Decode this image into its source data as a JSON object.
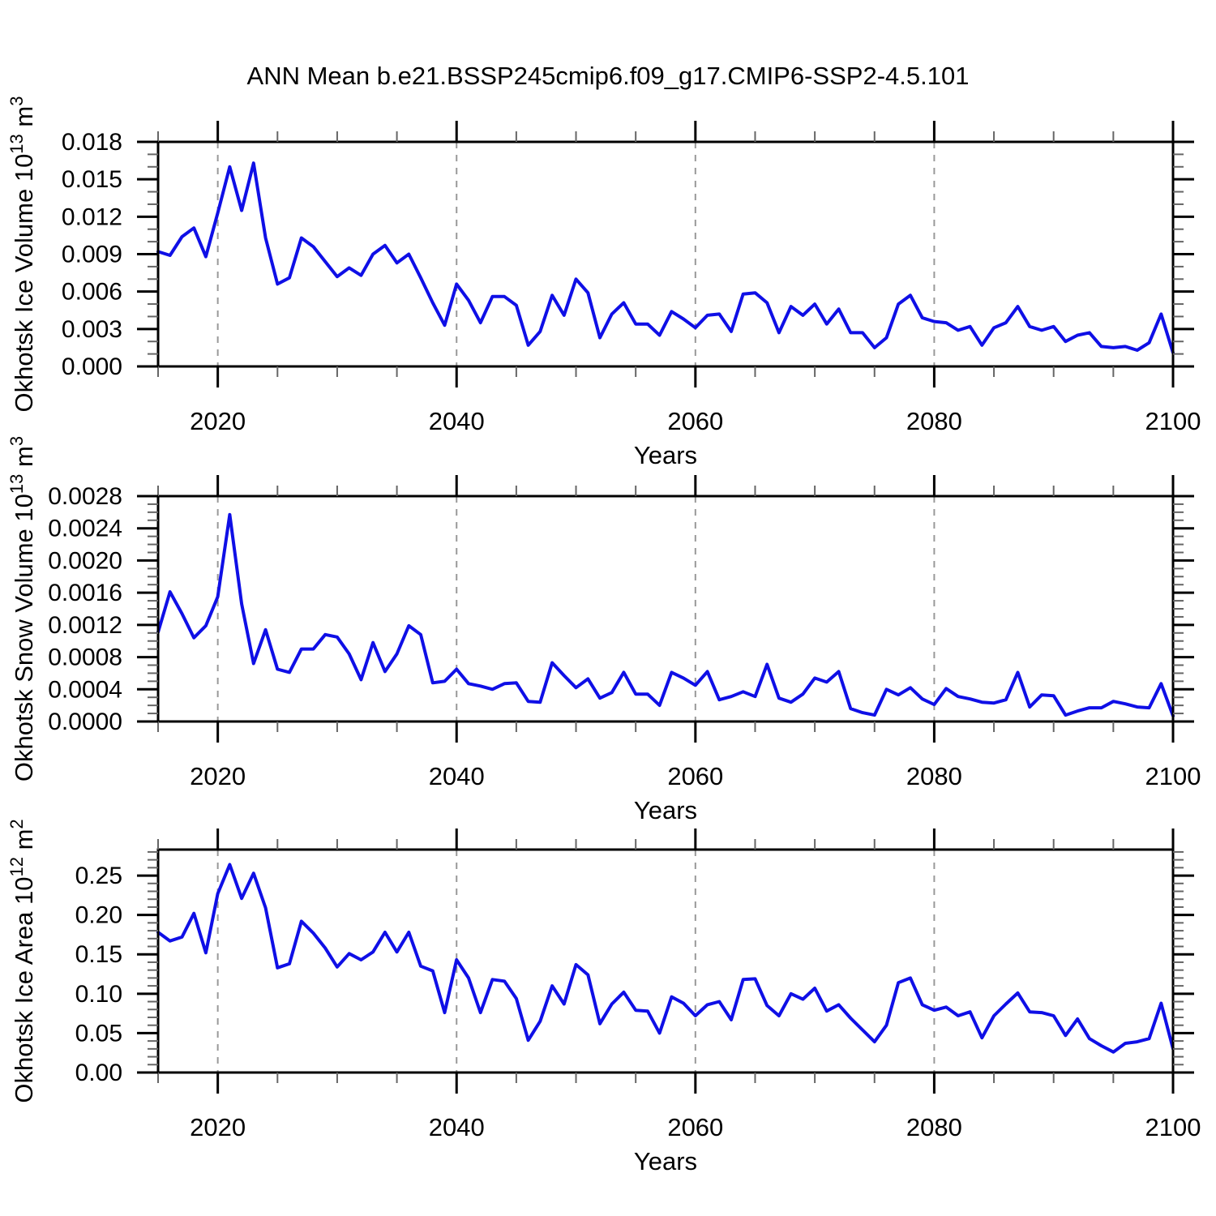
{
  "title": "ANN Mean b.e21.BSSP245cmip6.f09_g17.CMIP6-SSP2-4.5.101",
  "colors": {
    "line": "#0f0fe6",
    "axis": "#000000",
    "grid": "#999999",
    "minor_tick": "#666666",
    "background": "#ffffff"
  },
  "chart_data": {
    "type": "line",
    "title": "ANN Mean b.e21.BSSP245cmip6.f09_g17.CMIP6-SSP2-4.5.101",
    "x_label": "Years",
    "x_range": [
      2015,
      2100
    ],
    "x_ticks": {
      "values": [
        2020,
        2040,
        2060,
        2080,
        2100
      ],
      "labels": [
        "2020",
        "2040",
        "2060",
        "2080",
        "2100"
      ],
      "minor_step": 5,
      "grid_values": [
        2020,
        2040,
        2060,
        2080
      ]
    },
    "years": [
      2015,
      2016,
      2017,
      2018,
      2019,
      2020,
      2021,
      2022,
      2023,
      2024,
      2025,
      2026,
      2027,
      2028,
      2029,
      2030,
      2031,
      2032,
      2033,
      2034,
      2035,
      2036,
      2037,
      2038,
      2039,
      2040,
      2041,
      2042,
      2043,
      2044,
      2045,
      2046,
      2047,
      2048,
      2049,
      2050,
      2051,
      2052,
      2053,
      2054,
      2055,
      2056,
      2057,
      2058,
      2059,
      2060,
      2061,
      2062,
      2063,
      2064,
      2065,
      2066,
      2067,
      2068,
      2069,
      2070,
      2071,
      2072,
      2073,
      2074,
      2075,
      2076,
      2077,
      2078,
      2079,
      2080,
      2081,
      2082,
      2083,
      2084,
      2085,
      2086,
      2087,
      2088,
      2089,
      2090,
      2091,
      2092,
      2093,
      2094,
      2095,
      2096,
      2097,
      2098,
      2099,
      2100
    ],
    "panels": [
      {
        "id": "ice-volume",
        "y_label": {
          "main": "Okhotsk Ice Volume 10",
          "main_exp": "13",
          "unit": " m",
          "unit_exp": "3"
        },
        "y_range": [
          0,
          0.018
        ],
        "y_ticks": {
          "values": [
            0.0,
            0.003,
            0.006,
            0.009,
            0.012,
            0.015,
            0.018
          ],
          "labels": [
            "0.000",
            "0.003",
            "0.006",
            "0.009",
            "0.012",
            "0.015",
            "0.018"
          ],
          "minor_step": 0.001
        },
        "values": [
          0.0092,
          0.0089,
          0.0104,
          0.0111,
          0.0088,
          0.0123,
          0.016,
          0.0125,
          0.0163,
          0.0103,
          0.0066,
          0.0071,
          0.0103,
          0.0096,
          0.0084,
          0.0072,
          0.0079,
          0.0073,
          0.009,
          0.0097,
          0.0083,
          0.009,
          0.0071,
          0.0051,
          0.0033,
          0.0066,
          0.0053,
          0.0035,
          0.0056,
          0.0056,
          0.0049,
          0.0017,
          0.0028,
          0.0057,
          0.0041,
          0.007,
          0.0059,
          0.0023,
          0.0042,
          0.0051,
          0.0034,
          0.0034,
          0.0025,
          0.0044,
          0.0038,
          0.0031,
          0.0041,
          0.0042,
          0.0028,
          0.0058,
          0.0059,
          0.0051,
          0.0027,
          0.0048,
          0.0041,
          0.005,
          0.0034,
          0.0046,
          0.0027,
          0.0027,
          0.0015,
          0.0023,
          0.005,
          0.0057,
          0.0039,
          0.0036,
          0.0035,
          0.0029,
          0.0032,
          0.0017,
          0.0031,
          0.0035,
          0.0048,
          0.0032,
          0.0029,
          0.0032,
          0.002,
          0.0025,
          0.0027,
          0.0016,
          0.0015,
          0.0016,
          0.0013,
          0.0019,
          0.0042,
          0.0011
        ]
      },
      {
        "id": "snow-volume",
        "y_label": {
          "main": "Okhotsk Snow Volume 10",
          "main_exp": "13",
          "unit": " m",
          "unit_exp": "3"
        },
        "y_range": [
          0,
          0.0028
        ],
        "y_ticks": {
          "values": [
            0.0,
            0.0004,
            0.0008,
            0.0012,
            0.0016,
            0.002,
            0.0024,
            0.0028
          ],
          "labels": [
            "0.0000",
            "0.0004",
            "0.0008",
            "0.0012",
            "0.0016",
            "0.0020",
            "0.0024",
            "0.0028"
          ],
          "minor_step": 0.0001
        },
        "values": [
          0.00111,
          0.00161,
          0.00134,
          0.00104,
          0.00119,
          0.00155,
          0.00257,
          0.00146,
          0.00072,
          0.00114,
          0.00065,
          0.00061,
          0.0009,
          0.0009,
          0.00108,
          0.00105,
          0.00084,
          0.00052,
          0.00098,
          0.00062,
          0.00084,
          0.00119,
          0.00108,
          0.00048,
          0.0005,
          0.00065,
          0.00047,
          0.00044,
          0.0004,
          0.00047,
          0.00048,
          0.00025,
          0.00024,
          0.00073,
          0.00057,
          0.00042,
          0.00053,
          0.00029,
          0.00036,
          0.00061,
          0.00034,
          0.00034,
          0.0002,
          0.00061,
          0.00054,
          0.00045,
          0.00062,
          0.00027,
          0.00031,
          0.00037,
          0.00031,
          0.00071,
          0.00029,
          0.00024,
          0.00034,
          0.00054,
          0.00049,
          0.00062,
          0.00016,
          0.00011,
          8e-05,
          0.0004,
          0.00033,
          0.00042,
          0.00028,
          0.00021,
          0.00041,
          0.00031,
          0.00028,
          0.00024,
          0.00023,
          0.00027,
          0.00061,
          0.00018,
          0.00033,
          0.00032,
          8e-05,
          0.00013,
          0.00017,
          0.00017,
          0.00025,
          0.00022,
          0.00018,
          0.00017,
          0.00047,
          7e-05
        ]
      },
      {
        "id": "ice-area",
        "y_label": {
          "main": "Okhotsk Ice Area 10",
          "main_exp": "12",
          "unit": " m",
          "unit_exp": "2"
        },
        "y_range": [
          0,
          0.283
        ],
        "y_ticks": {
          "values": [
            0.0,
            0.05,
            0.1,
            0.15,
            0.2,
            0.25
          ],
          "labels": [
            "0.00",
            "0.05",
            "0.10",
            "0.15",
            "0.20",
            "0.25"
          ],
          "minor_step": 0.01
        },
        "values": [
          0.178,
          0.167,
          0.172,
          0.202,
          0.152,
          0.227,
          0.264,
          0.221,
          0.253,
          0.209,
          0.133,
          0.138,
          0.192,
          0.177,
          0.158,
          0.134,
          0.151,
          0.143,
          0.153,
          0.178,
          0.153,
          0.178,
          0.135,
          0.129,
          0.076,
          0.143,
          0.12,
          0.076,
          0.118,
          0.116,
          0.094,
          0.041,
          0.065,
          0.11,
          0.087,
          0.137,
          0.124,
          0.062,
          0.087,
          0.102,
          0.079,
          0.078,
          0.05,
          0.096,
          0.088,
          0.072,
          0.086,
          0.09,
          0.067,
          0.118,
          0.119,
          0.085,
          0.072,
          0.1,
          0.093,
          0.107,
          0.078,
          0.086,
          0.069,
          0.054,
          0.039,
          0.06,
          0.114,
          0.12,
          0.086,
          0.079,
          0.083,
          0.072,
          0.077,
          0.044,
          0.072,
          0.087,
          0.101,
          0.077,
          0.076,
          0.072,
          0.047,
          0.068,
          0.043,
          0.034,
          0.026,
          0.037,
          0.039,
          0.043,
          0.088,
          0.03
        ]
      }
    ]
  }
}
